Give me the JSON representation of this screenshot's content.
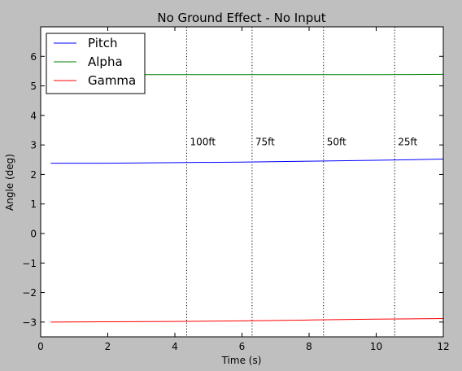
{
  "chart_data": {
    "type": "line",
    "title": "No Ground Effect - No Input",
    "xlabel": "Time (s)",
    "ylabel": "Angle (deg)",
    "xlim": [
      0,
      12
    ],
    "ylim": [
      -3.5,
      7
    ],
    "xticks": [
      0,
      2,
      4,
      6,
      8,
      10,
      12
    ],
    "yticks": [
      -3,
      -2,
      -1,
      0,
      1,
      2,
      3,
      4,
      5,
      6
    ],
    "xtick_labels": [
      "0",
      "2",
      "4",
      "6",
      "8",
      "10",
      "12"
    ],
    "ytick_labels": [
      "−3",
      "−2",
      "−1",
      "0",
      "1",
      "2",
      "3",
      "4",
      "5",
      "6"
    ],
    "grid": false,
    "legend_position": "top-left",
    "x": [
      0.3,
      2,
      4,
      6,
      8,
      10,
      12
    ],
    "series": [
      {
        "name": "Pitch",
        "color": "#0000ff",
        "values": [
          2.38,
          2.38,
          2.4,
          2.42,
          2.45,
          2.48,
          2.52
        ]
      },
      {
        "name": "Alpha",
        "color": "#008000",
        "values": [
          5.38,
          5.38,
          5.38,
          5.38,
          5.38,
          5.38,
          5.39
        ]
      },
      {
        "name": "Gamma",
        "color": "#ff0000",
        "values": [
          -3.0,
          -2.99,
          -2.98,
          -2.96,
          -2.93,
          -2.9,
          -2.88
        ]
      }
    ],
    "annotations": [
      {
        "x": 4.35,
        "label": "100ft",
        "label_y": 3.0
      },
      {
        "x": 6.3,
        "label": "75ft",
        "label_y": 3.0
      },
      {
        "x": 8.43,
        "label": "50ft",
        "label_y": 3.0
      },
      {
        "x": 10.55,
        "label": "25ft",
        "label_y": 3.0
      }
    ]
  }
}
